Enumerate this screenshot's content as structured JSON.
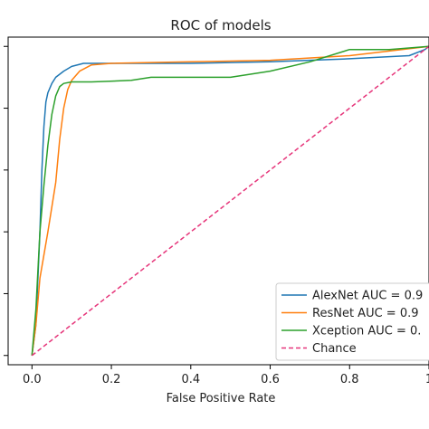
{
  "chart_data": {
    "type": "line",
    "title": "ROC of models",
    "xlabel": "False Positive Rate",
    "ylabel": "",
    "xlim": [
      -0.06,
      1.0
    ],
    "ylim": [
      -0.03,
      1.03
    ],
    "x_ticks": [
      0.0,
      0.2,
      0.4,
      0.6,
      0.8,
      1.0
    ],
    "x_tick_labels": [
      "0.0",
      "0.2",
      "0.4",
      "0.6",
      "0.8",
      "1"
    ],
    "y_ticks": [
      0.0,
      0.2,
      0.4,
      0.6,
      0.8,
      1.0
    ],
    "y_tick_labels": [
      "",
      "",
      "",
      "",
      "",
      ""
    ],
    "grid": false,
    "legend_position": "lower-right",
    "series": [
      {
        "name": "AlexNet  AUC = 0.9",
        "color": "#1f77b4",
        "style": "solid",
        "x": [
          0.0,
          0.01,
          0.02,
          0.025,
          0.03,
          0.035,
          0.04,
          0.05,
          0.06,
          0.08,
          0.1,
          0.13,
          0.2,
          0.4,
          0.6,
          0.8,
          0.95,
          0.99,
          1.0
        ],
        "y": [
          0.0,
          0.1,
          0.4,
          0.6,
          0.74,
          0.82,
          0.85,
          0.88,
          0.9,
          0.92,
          0.935,
          0.945,
          0.945,
          0.945,
          0.95,
          0.96,
          0.97,
          0.99,
          1.0
        ]
      },
      {
        "name": "ResNet   AUC = 0.9",
        "color": "#ff7f0e",
        "style": "solid",
        "x": [
          0.0,
          0.01,
          0.02,
          0.04,
          0.06,
          0.07,
          0.08,
          0.09,
          0.1,
          0.12,
          0.15,
          0.2,
          0.4,
          0.6,
          0.8,
          0.9,
          1.0
        ],
        "y": [
          0.0,
          0.1,
          0.25,
          0.4,
          0.56,
          0.7,
          0.8,
          0.86,
          0.89,
          0.92,
          0.94,
          0.945,
          0.95,
          0.955,
          0.97,
          0.985,
          1.0
        ]
      },
      {
        "name": "Xception AUC = 0.",
        "color": "#2ca02c",
        "style": "solid",
        "x": [
          0.0,
          0.01,
          0.02,
          0.03,
          0.04,
          0.05,
          0.06,
          0.07,
          0.08,
          0.1,
          0.15,
          0.25,
          0.3,
          0.5,
          0.6,
          0.7,
          0.8,
          0.9,
          1.0
        ],
        "y": [
          0.0,
          0.15,
          0.4,
          0.55,
          0.68,
          0.78,
          0.84,
          0.87,
          0.88,
          0.885,
          0.885,
          0.89,
          0.9,
          0.9,
          0.92,
          0.95,
          0.99,
          0.99,
          1.0
        ]
      },
      {
        "name": "Chance",
        "color": "#e6357a",
        "style": "dashed",
        "x": [
          0.0,
          1.0
        ],
        "y": [
          0.0,
          1.0
        ]
      }
    ]
  }
}
